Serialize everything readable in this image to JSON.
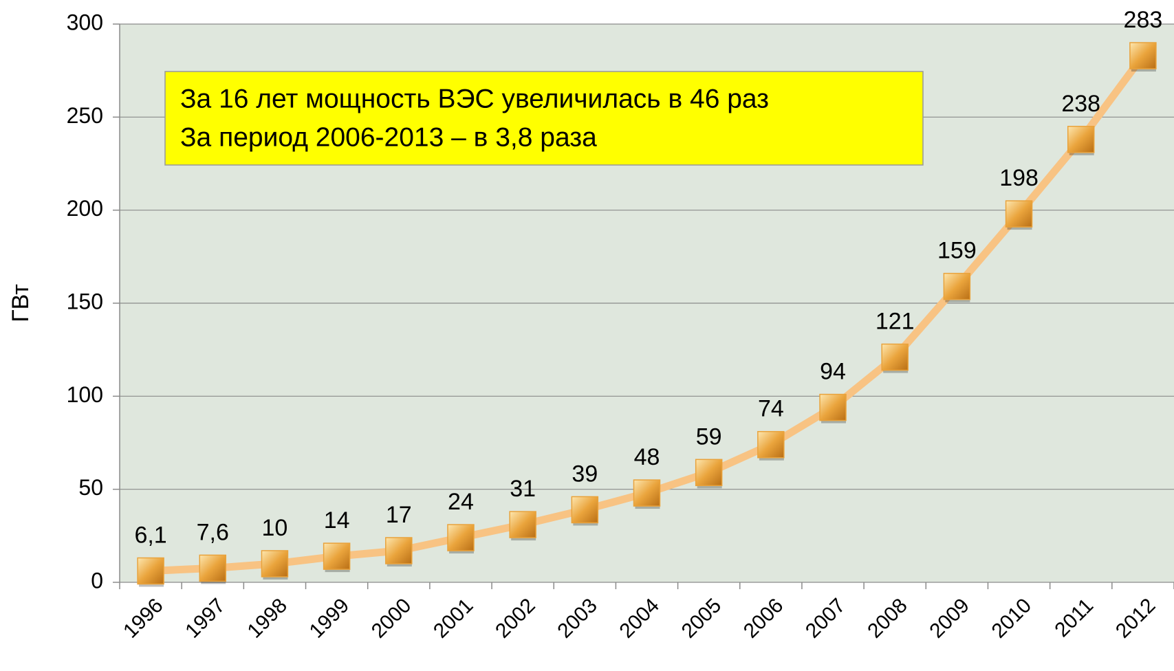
{
  "chart_data": {
    "type": "line",
    "y_label": "ГВт",
    "annotations": [
      "За 16 лет мощность ВЭС увеличилась в 46 раз",
      "За период 2006-2013 – в 3,8 раза"
    ],
    "categories": [
      "1996",
      "1997",
      "1998",
      "1999",
      "2000",
      "2001",
      "2002",
      "2003",
      "2004",
      "2005",
      "2006",
      "2007",
      "2008",
      "2009",
      "2010",
      "2011",
      "2012"
    ],
    "series": [
      {
        "color": "#f8c383",
        "marker_color": "#e9a23b",
        "values": [
          6.1,
          7.6,
          10,
          14,
          17,
          24,
          31,
          39,
          48,
          59,
          74,
          94,
          121,
          159,
          198,
          238,
          283
        ],
        "value_labels": [
          "6,1",
          "7,6",
          "10",
          "14",
          "17",
          "24",
          "31",
          "39",
          "48",
          "59",
          "74",
          "94",
          "121",
          "159",
          "198",
          "238",
          "283"
        ]
      }
    ],
    "ylim": [
      0,
      300
    ],
    "yticks": [
      0,
      50,
      100,
      150,
      200,
      250,
      300
    ],
    "grid": true
  }
}
